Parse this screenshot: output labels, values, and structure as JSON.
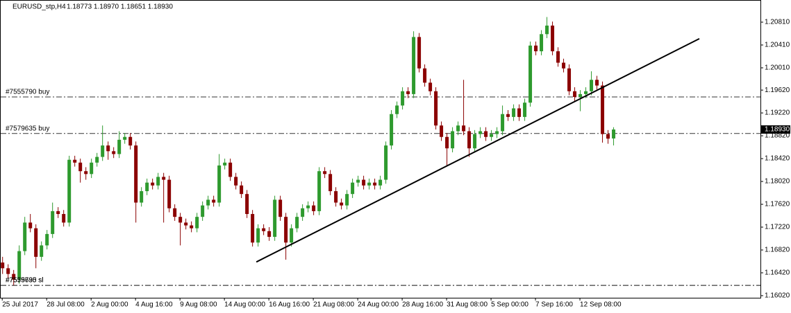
{
  "chart_data": {
    "type": "candlestick",
    "title": "EURUSD_stp,H4",
    "info": "1.18773 1.18970 1.18651 1.18930",
    "xlim": [
      -0.4,
      136.5
    ],
    "ylim": [
      1.15983,
      1.21198
    ],
    "xticks": [
      {
        "value": 0,
        "label": "25 Jul 2017"
      },
      {
        "value": 8,
        "label": "28 Jul 08:00"
      },
      {
        "value": 16,
        "label": "2 Aug 00:00"
      },
      {
        "value": 24,
        "label": "4 Aug 16:00"
      },
      {
        "value": 32,
        "label": "9 Aug 08:00"
      },
      {
        "value": 40,
        "label": "14 Aug 00:00"
      },
      {
        "value": 48,
        "label": "16 Aug 16:00"
      },
      {
        "value": 56,
        "label": "21 Aug 08:00"
      },
      {
        "value": 64,
        "label": "24 Aug 00:00"
      },
      {
        "value": 72,
        "label": "28 Aug 16:00"
      },
      {
        "value": 80,
        "label": "31 Aug 08:00"
      },
      {
        "value": 88,
        "label": "5 Sep 00:00"
      },
      {
        "value": 96,
        "label": "7 Sep 16:00"
      },
      {
        "value": 104,
        "label": "12 Sep 08:00"
      }
    ],
    "yticks": [
      {
        "value": 1.2081,
        "label": "1.20810"
      },
      {
        "value": 1.2041,
        "label": "1.20410"
      },
      {
        "value": 1.2001,
        "label": "1.20010"
      },
      {
        "value": 1.1962,
        "label": "1.19620"
      },
      {
        "value": 1.1922,
        "label": "1.19220"
      },
      {
        "value": 1.1882,
        "label": "1.18820"
      },
      {
        "value": 1.1842,
        "label": "1.18420"
      },
      {
        "value": 1.1802,
        "label": "1.18020"
      },
      {
        "value": 1.1762,
        "label": "1.17620"
      },
      {
        "value": 1.1722,
        "label": "1.17220"
      },
      {
        "value": 1.1682,
        "label": "1.16820"
      },
      {
        "value": 1.1642,
        "label": "1.16420"
      },
      {
        "value": 1.1602,
        "label": "1.16020"
      }
    ],
    "price_label": {
      "value": 1.1893,
      "label": "1.18930"
    },
    "up_color": "#2e9a2e",
    "down_color": "#8b0000",
    "order_lines": [
      {
        "label": "#7555790 buy",
        "level": 1.195
      },
      {
        "label": "#7579635 buy",
        "level": 1.1886
      },
      {
        "label": "#7579635 sl",
        "level": 1.162
      },
      {
        "label": "#7555790 sl",
        "level": 1.162
      }
    ],
    "trendline": {
      "x": [
        45.75,
        125.5
      ],
      "y": [
        1.1661,
        1.2052
      ]
    },
    "ohlc": [
      [
        1.166,
        1.167,
        1.164,
        1.165
      ],
      [
        1.165,
        1.1657,
        1.1633,
        1.164
      ],
      [
        1.164,
        1.1647,
        1.162,
        1.163
      ],
      [
        1.163,
        1.169,
        1.1623,
        1.168
      ],
      [
        1.168,
        1.174,
        1.1673,
        1.173
      ],
      [
        1.173,
        1.1745,
        1.1713,
        1.172
      ],
      [
        1.172,
        1.1727,
        1.165,
        1.167
      ],
      [
        1.167,
        1.1697,
        1.1663,
        1.169
      ],
      [
        1.169,
        1.1717,
        1.1683,
        1.171
      ],
      [
        1.171,
        1.1765,
        1.1703,
        1.175
      ],
      [
        1.175,
        1.1757,
        1.1738,
        1.1745
      ],
      [
        1.1745,
        1.1752,
        1.1723,
        1.173
      ],
      [
        1.173,
        1.1847,
        1.1723,
        1.184
      ],
      [
        1.184,
        1.1847,
        1.1828,
        1.1835
      ],
      [
        1.1835,
        1.1842,
        1.18,
        1.182
      ],
      [
        1.182,
        1.1827,
        1.1805,
        1.1815
      ],
      [
        1.1815,
        1.1842,
        1.1808,
        1.1835
      ],
      [
        1.1835,
        1.1852,
        1.1828,
        1.1845
      ],
      [
        1.1845,
        1.19,
        1.1838,
        1.1865
      ],
      [
        1.1865,
        1.1872,
        1.184,
        1.1855
      ],
      [
        1.1855,
        1.1862,
        1.1843,
        1.185
      ],
      [
        1.185,
        1.189,
        1.1843,
        1.1875
      ],
      [
        1.1875,
        1.1887,
        1.1868,
        1.188
      ],
      [
        1.188,
        1.1887,
        1.1858,
        1.1865
      ],
      [
        1.1865,
        1.1872,
        1.173,
        1.1765
      ],
      [
        1.1765,
        1.1792,
        1.1758,
        1.1785
      ],
      [
        1.1785,
        1.1807,
        1.1778,
        1.18
      ],
      [
        1.18,
        1.1807,
        1.1788,
        1.1795
      ],
      [
        1.1795,
        1.1817,
        1.1788,
        1.181
      ],
      [
        1.181,
        1.1817,
        1.173,
        1.1805
      ],
      [
        1.1805,
        1.1812,
        1.1748,
        1.1755
      ],
      [
        1.1755,
        1.1762,
        1.1733,
        1.174
      ],
      [
        1.174,
        1.1747,
        1.169,
        1.173
      ],
      [
        1.173,
        1.1737,
        1.1718,
        1.1725
      ],
      [
        1.1725,
        1.1732,
        1.1713,
        1.172
      ],
      [
        1.172,
        1.1747,
        1.1713,
        1.174
      ],
      [
        1.174,
        1.1767,
        1.1733,
        1.176
      ],
      [
        1.176,
        1.1777,
        1.1753,
        1.177
      ],
      [
        1.177,
        1.1777,
        1.1758,
        1.1765
      ],
      [
        1.1765,
        1.185,
        1.1758,
        1.183
      ],
      [
        1.183,
        1.1842,
        1.1823,
        1.1835
      ],
      [
        1.1835,
        1.1842,
        1.1803,
        1.181
      ],
      [
        1.181,
        1.1817,
        1.1788,
        1.1795
      ],
      [
        1.1795,
        1.1802,
        1.1773,
        1.178
      ],
      [
        1.178,
        1.1787,
        1.1738,
        1.1745
      ],
      [
        1.1745,
        1.1752,
        1.1688,
        1.1695
      ],
      [
        1.1695,
        1.1727,
        1.1688,
        1.172
      ],
      [
        1.172,
        1.1727,
        1.1708,
        1.1715
      ],
      [
        1.1715,
        1.1722,
        1.1698,
        1.1705
      ],
      [
        1.1705,
        1.1777,
        1.1698,
        1.177
      ],
      [
        1.177,
        1.1777,
        1.1733,
        1.174
      ],
      [
        1.174,
        1.1747,
        1.1665,
        1.1695
      ],
      [
        1.1695,
        1.1727,
        1.1688,
        1.172
      ],
      [
        1.172,
        1.1747,
        1.1713,
        1.174
      ],
      [
        1.174,
        1.1762,
        1.1733,
        1.1755
      ],
      [
        1.1755,
        1.1767,
        1.1748,
        1.176
      ],
      [
        1.176,
        1.1767,
        1.1743,
        1.175
      ],
      [
        1.175,
        1.1827,
        1.1743,
        1.182
      ],
      [
        1.182,
        1.1827,
        1.1808,
        1.1815
      ],
      [
        1.1815,
        1.1822,
        1.1778,
        1.1785
      ],
      [
        1.1785,
        1.1792,
        1.1758,
        1.1765
      ],
      [
        1.1765,
        1.1772,
        1.1753,
        1.176
      ],
      [
        1.176,
        1.1787,
        1.1753,
        1.178
      ],
      [
        1.178,
        1.1807,
        1.1773,
        1.18
      ],
      [
        1.18,
        1.1812,
        1.1793,
        1.1805
      ],
      [
        1.1805,
        1.1812,
        1.1788,
        1.1795
      ],
      [
        1.1795,
        1.1807,
        1.1788,
        1.18
      ],
      [
        1.18,
        1.1807,
        1.1788,
        1.1795
      ],
      [
        1.1795,
        1.1812,
        1.1788,
        1.1805
      ],
      [
        1.1805,
        1.1872,
        1.1798,
        1.1865
      ],
      [
        1.1865,
        1.1927,
        1.1858,
        1.192
      ],
      [
        1.192,
        1.1942,
        1.1913,
        1.1935
      ],
      [
        1.1935,
        1.1967,
        1.1928,
        1.196
      ],
      [
        1.196,
        1.1967,
        1.1948,
        1.1955
      ],
      [
        1.1955,
        1.2065,
        1.1948,
        1.2055
      ],
      [
        1.2055,
        1.2062,
        1.1993,
        1.2
      ],
      [
        1.2,
        1.2007,
        1.1968,
        1.1975
      ],
      [
        1.1975,
        1.1982,
        1.1953,
        1.196
      ],
      [
        1.196,
        1.1967,
        1.1893,
        1.19
      ],
      [
        1.19,
        1.1907,
        1.1873,
        1.188
      ],
      [
        1.188,
        1.1887,
        1.183,
        1.186
      ],
      [
        1.186,
        1.1897,
        1.1853,
        1.189
      ],
      [
        1.189,
        1.1907,
        1.1883,
        1.19
      ],
      [
        1.19,
        1.198,
        1.1883,
        1.189
      ],
      [
        1.189,
        1.1897,
        1.1845,
        1.186
      ],
      [
        1.186,
        1.1892,
        1.1853,
        1.1885
      ],
      [
        1.1885,
        1.1897,
        1.1878,
        1.189
      ],
      [
        1.189,
        1.1897,
        1.1873,
        1.188
      ],
      [
        1.188,
        1.1892,
        1.1873,
        1.1885
      ],
      [
        1.1885,
        1.1897,
        1.1878,
        1.189
      ],
      [
        1.189,
        1.1935,
        1.1883,
        1.192
      ],
      [
        1.192,
        1.1927,
        1.1908,
        1.1915
      ],
      [
        1.1915,
        1.1937,
        1.1908,
        1.193
      ],
      [
        1.193,
        1.1937,
        1.1908,
        1.1915
      ],
      [
        1.1915,
        1.1947,
        1.1908,
        1.194
      ],
      [
        1.194,
        1.2047,
        1.1933,
        1.204
      ],
      [
        1.204,
        1.2047,
        1.2023,
        1.203
      ],
      [
        1.203,
        1.2067,
        1.2023,
        1.206
      ],
      [
        1.206,
        1.209,
        1.2053,
        1.2075
      ],
      [
        1.2075,
        1.2082,
        1.2023,
        1.203
      ],
      [
        1.203,
        1.2037,
        1.2003,
        1.201
      ],
      [
        1.201,
        1.2017,
        1.1993,
        1.2
      ],
      [
        1.2,
        1.2007,
        1.1953,
        1.196
      ],
      [
        1.196,
        1.1967,
        1.1943,
        1.195
      ],
      [
        1.195,
        1.1962,
        1.1925,
        1.1955
      ],
      [
        1.1955,
        1.1967,
        1.1948,
        1.196
      ],
      [
        1.196,
        1.1995,
        1.1953,
        1.198
      ],
      [
        1.198,
        1.1987,
        1.1963,
        1.197
      ],
      [
        1.197,
        1.1977,
        1.187,
        1.1885
      ],
      [
        1.1885,
        1.1892,
        1.1868,
        1.1877
      ],
      [
        1.18773,
        1.1897,
        1.18651,
        1.1893
      ]
    ]
  }
}
